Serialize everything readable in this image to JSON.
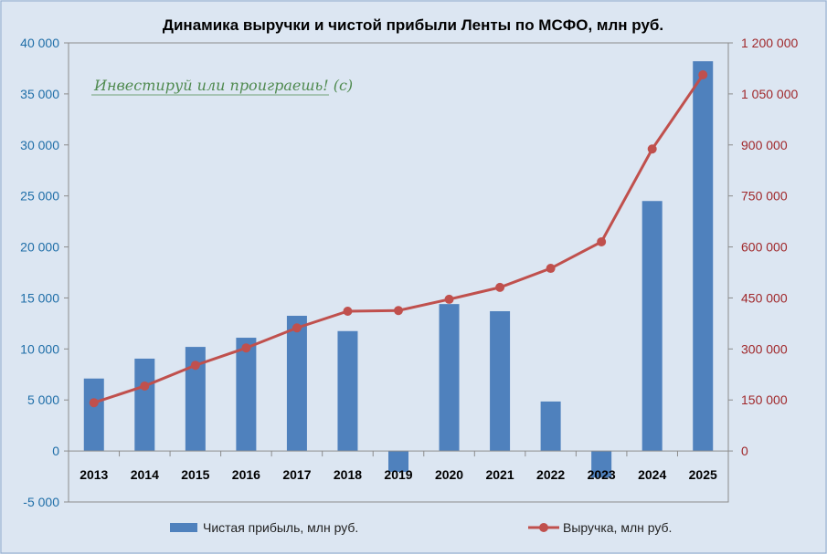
{
  "chart_data": {
    "type": "bar+line",
    "title": "Динамика выручки и чистой прибыли Ленты по МСФО, млн руб.",
    "watermark": "Инвестируй или проиграешь! (с)",
    "categories": [
      "2013",
      "2014",
      "2015",
      "2016",
      "2017",
      "2018",
      "2019",
      "2020",
      "2021",
      "2022",
      "2023",
      "2024",
      "2025"
    ],
    "series": [
      {
        "name": "Чистая прибыль, млн руб.",
        "type": "bar",
        "axis": "left",
        "color": "#4f81bd",
        "values": [
          7100,
          9050,
          10200,
          11100,
          13250,
          11750,
          -2050,
          14400,
          13700,
          4850,
          -2600,
          24500,
          38200
        ]
      },
      {
        "name": "Выручка, млн руб.",
        "type": "line",
        "axis": "right",
        "color": "#c0504d",
        "values": [
          142000,
          191000,
          252000,
          303000,
          362000,
          411000,
          413000,
          446000,
          481000,
          537000,
          615000,
          888000,
          1106000
        ]
      }
    ],
    "left_axis": {
      "ylim": [
        -5000,
        40000
      ],
      "ticks": [
        "-5 000",
        "0",
        "5 000",
        "10 000",
        "15 000",
        "20 000",
        "25 000",
        "30 000",
        "35 000",
        "40 000"
      ],
      "tick_values": [
        -5000,
        0,
        5000,
        10000,
        15000,
        20000,
        25000,
        30000,
        35000,
        40000
      ],
      "color": "#1f6ea8"
    },
    "right_axis": {
      "ylim": [
        -150000,
        1200000
      ],
      "ticks": [
        "0",
        "150 000",
        "300 000",
        "450 000",
        "600 000",
        "750 000",
        "900 000",
        "1 050 000",
        "1 200 000"
      ],
      "tick_values": [
        0,
        150000,
        300000,
        450000,
        600000,
        750000,
        900000,
        1050000,
        1200000
      ],
      "color": "#a0282b"
    },
    "legend": "bottom",
    "grid": false
  }
}
